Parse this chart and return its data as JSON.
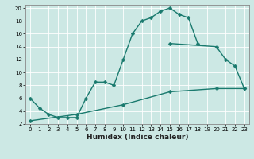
{
  "title": "",
  "xlabel": "Humidex (Indice chaleur)",
  "bg_color": "#cce8e4",
  "grid_color": "#ffffff",
  "line_color": "#1a7a6e",
  "xlim": [
    -0.5,
    23.5
  ],
  "ylim": [
    2,
    20.5
  ],
  "xticks": [
    0,
    1,
    2,
    3,
    4,
    5,
    6,
    7,
    8,
    9,
    10,
    11,
    12,
    13,
    14,
    15,
    16,
    17,
    18,
    19,
    20,
    21,
    22,
    23
  ],
  "yticks": [
    2,
    4,
    6,
    8,
    10,
    12,
    14,
    16,
    18,
    20
  ],
  "c1x": [
    0,
    1,
    2,
    3,
    4,
    5,
    6,
    7,
    8,
    9,
    10,
    11,
    12,
    13,
    14,
    15,
    16,
    17,
    18
  ],
  "c1y": [
    6,
    4.5,
    3.5,
    3,
    3,
    3,
    6,
    8.5,
    8.5,
    8,
    12,
    16,
    18,
    18.5,
    19.5,
    20,
    19,
    18.5,
    14.5
  ],
  "c2x": [
    15,
    20,
    21,
    22,
    23
  ],
  "c2y": [
    14.5,
    14,
    12,
    11,
    7.5
  ],
  "c3x": [
    0,
    5,
    10,
    15,
    20,
    23
  ],
  "c3y": [
    2.5,
    3.5,
    5,
    7,
    7.5,
    7.5
  ],
  "markersize": 2.5,
  "linewidth": 1.0,
  "tick_fontsize": 5.0,
  "xlabel_fontsize": 6.5
}
